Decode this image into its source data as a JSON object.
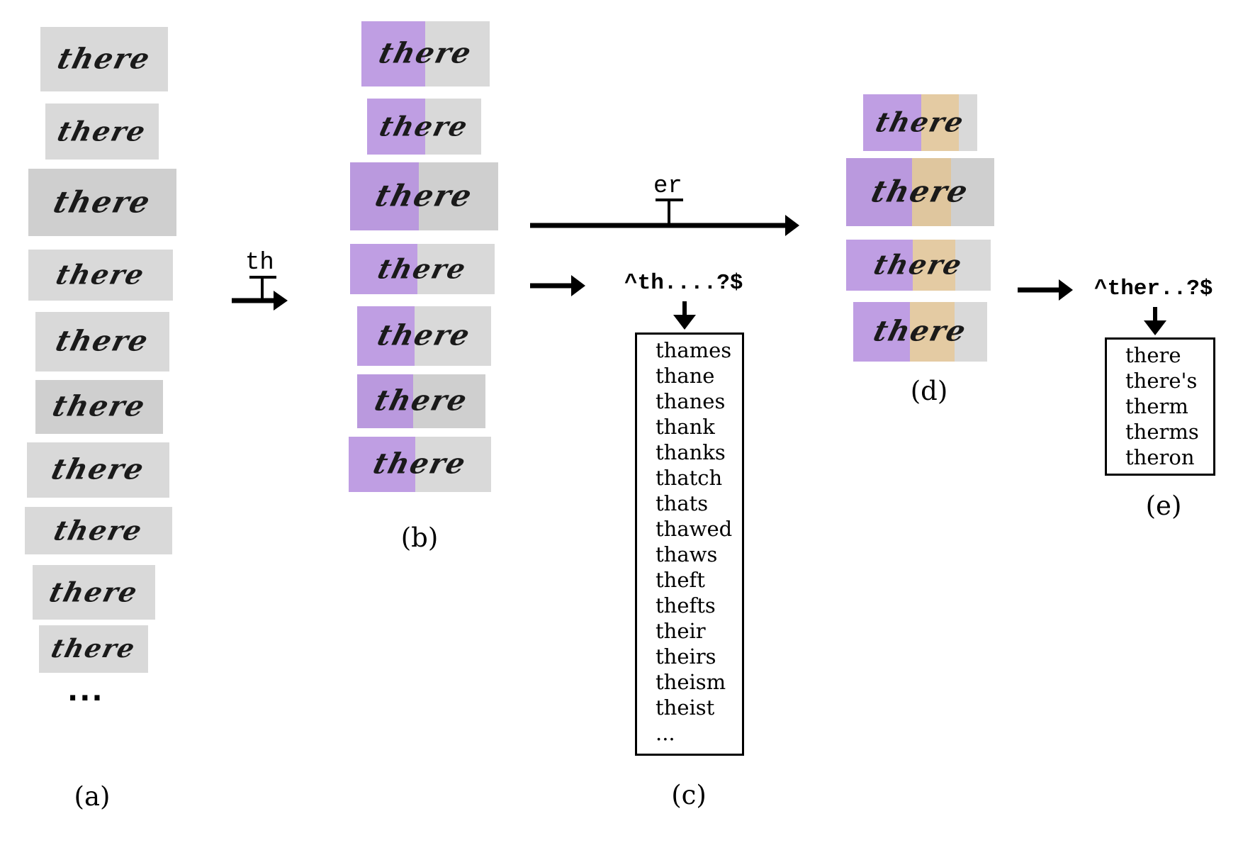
{
  "panels": {
    "a": {
      "label": "(a)",
      "word": "there",
      "ellipsis": "..."
    },
    "b": {
      "label": "(b)",
      "word": "there",
      "prefix_label": "th"
    },
    "c": {
      "label": "(c)",
      "regex": "^th....?$",
      "candidates": [
        "thames",
        "thane",
        "thanes",
        "thank",
        "thanks",
        "thatch",
        "thats",
        "thawed",
        "thaws",
        "theft",
        "thefts",
        "their",
        "theirs",
        "theism",
        "theist",
        "..."
      ]
    },
    "d": {
      "label": "(d)",
      "word": "there",
      "infix_label": "er"
    },
    "e": {
      "label": "(e)",
      "regex": "^ther..?$",
      "candidates": [
        "there",
        "there's",
        "therm",
        "therms",
        "theron"
      ]
    }
  },
  "colors": {
    "prefix_highlight": "#a96eeb",
    "infix_highlight": "#f0be6e",
    "crop_background": "#d9d9d9"
  }
}
